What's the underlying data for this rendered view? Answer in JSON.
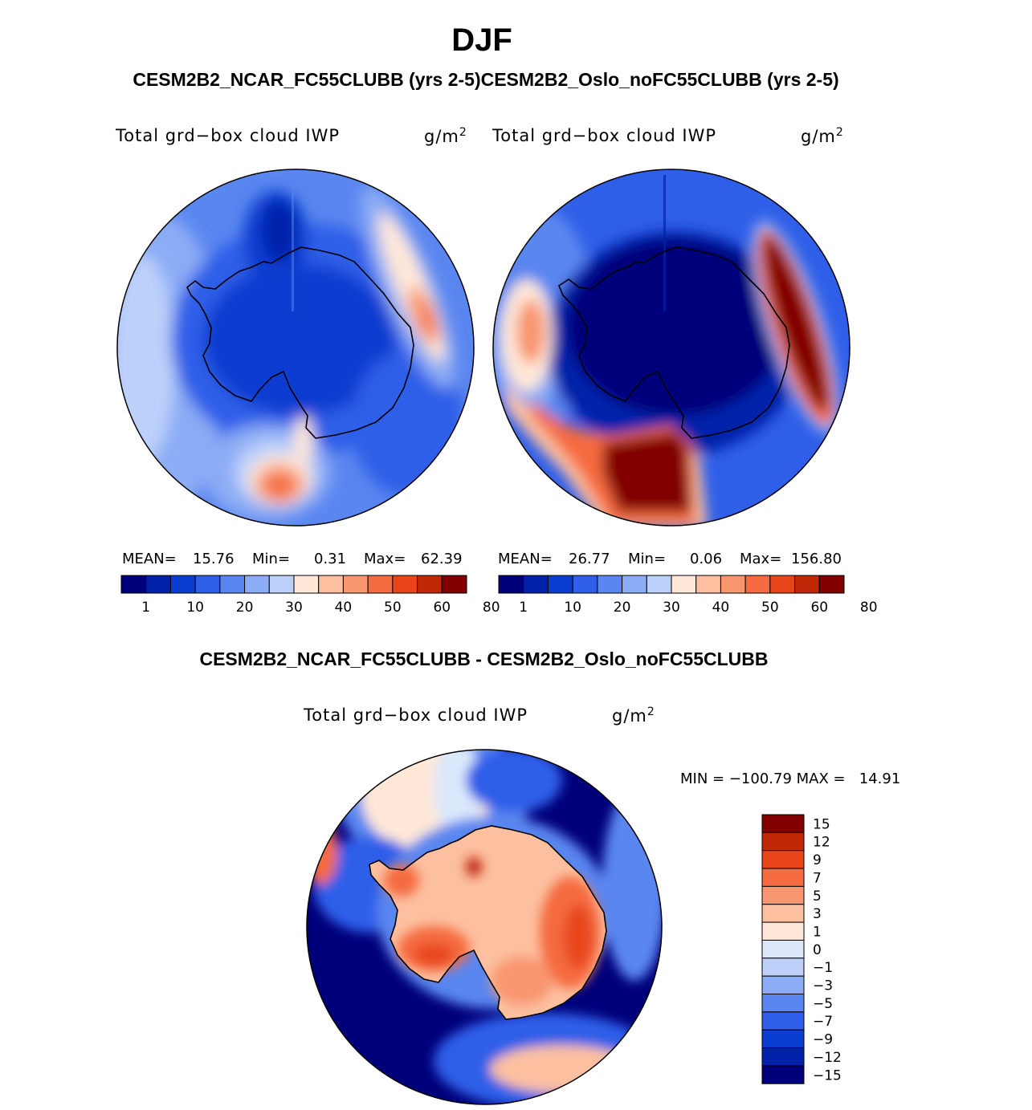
{
  "title": "DJF",
  "subtitle": "CESM2B2_NCAR_FC55CLUBB (yrs 2-5)CESM2B2_Oslo_noFC55CLUBB (yrs 2-5)",
  "diff_title": "CESM2B2_NCAR_FC55CLUBB - CESM2B2_Oslo_noFC55CLUBB",
  "panels": {
    "left": {
      "variable": "Total grd−box cloud IWP",
      "units_base": "g/m",
      "units_exp": "2",
      "mean_label": "MEAN=",
      "mean": "15.76",
      "min_label": "Min=",
      "min": "0.31",
      "max_label": "Max=",
      "max": "62.39"
    },
    "right": {
      "variable": "Total grd−box cloud IWP",
      "units_base": "g/m",
      "units_exp": "2",
      "mean_label": "MEAN=",
      "mean": "26.77",
      "min_label": "Min=",
      "min": "0.06",
      "max_label": "Max=",
      "max": "156.80"
    },
    "diff": {
      "variable": "Total grd−box cloud IWP",
      "units_base": "g/m",
      "units_exp": "2",
      "minmax": "MIN = −100.79 MAX =   14.91"
    }
  },
  "colors": {
    "abs_scale": [
      "#00007a",
      "#0022aa",
      "#0a3ed0",
      "#2f5fe8",
      "#5a86f0",
      "#8cacf5",
      "#bcd0fa",
      "#ffe8d8",
      "#fcc0a0",
      "#f89670",
      "#f56a40",
      "#e8461a",
      "#c02808",
      "#820000"
    ],
    "diff_scale": [
      "#00007a",
      "#0022aa",
      "#0a3ed0",
      "#2f5fe8",
      "#5a86f0",
      "#8cacf5",
      "#bcd0fa",
      "#dbe8fb",
      "#ffe8d8",
      "#fcc0a0",
      "#f89670",
      "#f56a40",
      "#e8461a",
      "#c02808",
      "#820000"
    ]
  },
  "chart_data": [
    {
      "type": "polar-contour-map",
      "panel": "left",
      "title": "CESM2B2_NCAR_FC55CLUBB (yrs 2-5)",
      "variable": "Total grd-box cloud IWP",
      "units": "g/m2",
      "mean": 15.76,
      "min": 0.31,
      "max": 62.39,
      "colorbar_levels": [
        1,
        5,
        10,
        15,
        20,
        25,
        30,
        35,
        40,
        45,
        50,
        55,
        60,
        70,
        80
      ],
      "colorbar_labels": [
        "1",
        "10",
        "20",
        "30",
        "40",
        "50",
        "60",
        "80"
      ]
    },
    {
      "type": "polar-contour-map",
      "panel": "right",
      "title": "CESM2B2_Oslo_noFC55CLUBB (yrs 2-5)",
      "variable": "Total grd-box cloud IWP",
      "units": "g/m2",
      "mean": 26.77,
      "min": 0.06,
      "max": 156.8,
      "colorbar_levels": [
        1,
        5,
        10,
        15,
        20,
        25,
        30,
        35,
        40,
        45,
        50,
        55,
        60,
        70,
        80
      ],
      "colorbar_labels": [
        "1",
        "10",
        "20",
        "30",
        "40",
        "50",
        "60",
        "80"
      ]
    },
    {
      "type": "polar-contour-map",
      "panel": "difference",
      "title": "CESM2B2_NCAR_FC55CLUBB - CESM2B2_Oslo_noFC55CLUBB",
      "variable": "Total grd-box cloud IWP",
      "units": "g/m2",
      "min": -100.79,
      "max": 14.91,
      "colorbar_labels": [
        "15",
        "12",
        "9",
        "7",
        "5",
        "3",
        "1",
        "0",
        "−1",
        "−3",
        "−5",
        "−7",
        "−9",
        "−12",
        "−15"
      ]
    }
  ]
}
